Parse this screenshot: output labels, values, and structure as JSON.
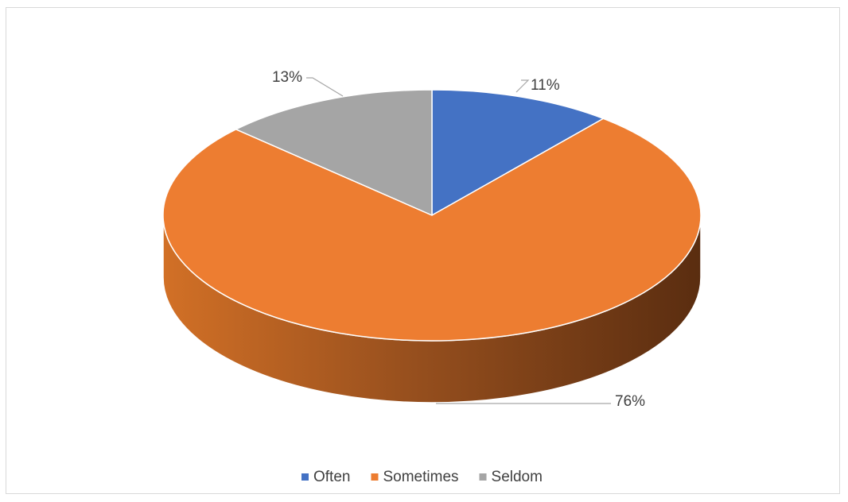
{
  "chart_data": {
    "type": "pie",
    "style": "3d",
    "categories": [
      "Often",
      "Sometimes",
      "Seldom"
    ],
    "values": [
      11,
      76,
      13
    ],
    "data_labels": [
      "11%",
      "76%",
      "13%"
    ],
    "colors": [
      "#4472c4",
      "#ed7d31",
      "#a5a5a5"
    ],
    "legend_position": "bottom",
    "title": ""
  }
}
